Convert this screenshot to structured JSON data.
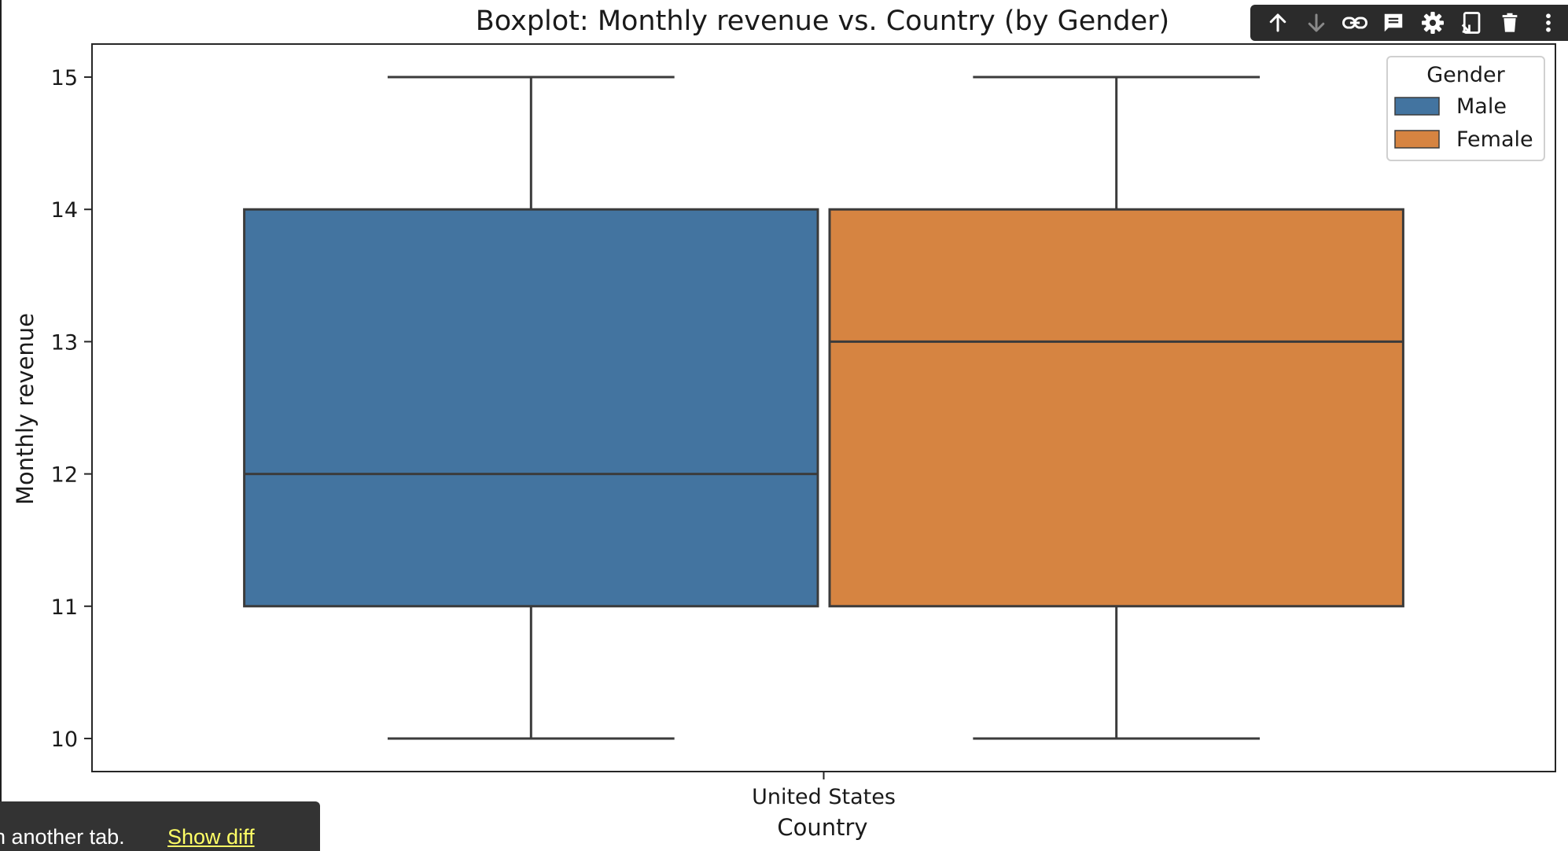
{
  "chart_data": {
    "type": "box",
    "title": "Boxplot: Monthly revenue vs. Country (by Gender)",
    "xlabel": "Country",
    "ylabel": "Monthly revenue",
    "categories": [
      "United States"
    ],
    "ylim": [
      9.75,
      15.25
    ],
    "yticks": [
      10,
      11,
      12,
      13,
      14,
      15
    ],
    "grid": false,
    "legend": {
      "title": "Gender",
      "position": "upper right"
    },
    "series": [
      {
        "name": "Male",
        "color": "#4374a0",
        "min": 10,
        "q1": 11,
        "median": 12,
        "q3": 14,
        "max": 15
      },
      {
        "name": "Female",
        "color": "#d68441",
        "min": 10,
        "q1": 11,
        "median": 13,
        "q3": 14,
        "max": 15
      }
    ]
  },
  "toolbar": {
    "icons": [
      "arrow-up-icon",
      "arrow-down-icon",
      "link-icon",
      "comment-icon",
      "gear-icon",
      "mirror-cell-icon",
      "delete-icon",
      "more-vert-icon"
    ]
  },
  "toast": {
    "message": "n another tab.",
    "action": "Show diff"
  }
}
